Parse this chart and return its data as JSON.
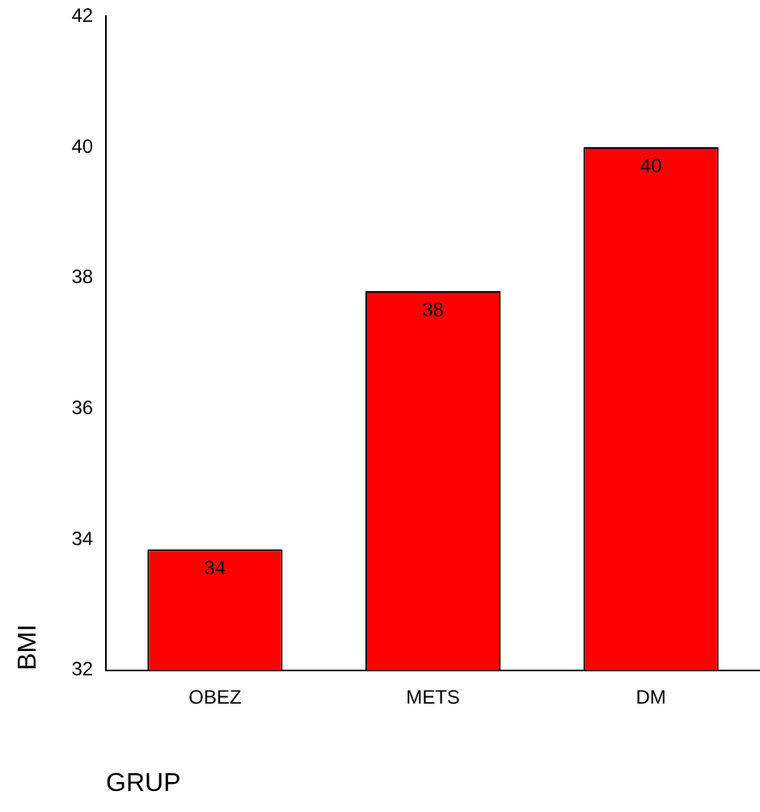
{
  "chart_data": {
    "type": "bar",
    "xlabel": "GRUP",
    "ylabel": "BMI",
    "categories": [
      "OBEZ",
      "METS",
      "DM"
    ],
    "series": [
      {
        "color": "#ff0000",
        "values": [
          33.85,
          37.8,
          40.0
        ],
        "value_labels": [
          "34",
          "38",
          "40"
        ]
      }
    ],
    "ylim": [
      32,
      42
    ],
    "yticks": [
      32,
      34,
      36,
      38,
      40,
      42
    ],
    "grid": false,
    "legend": false
  }
}
